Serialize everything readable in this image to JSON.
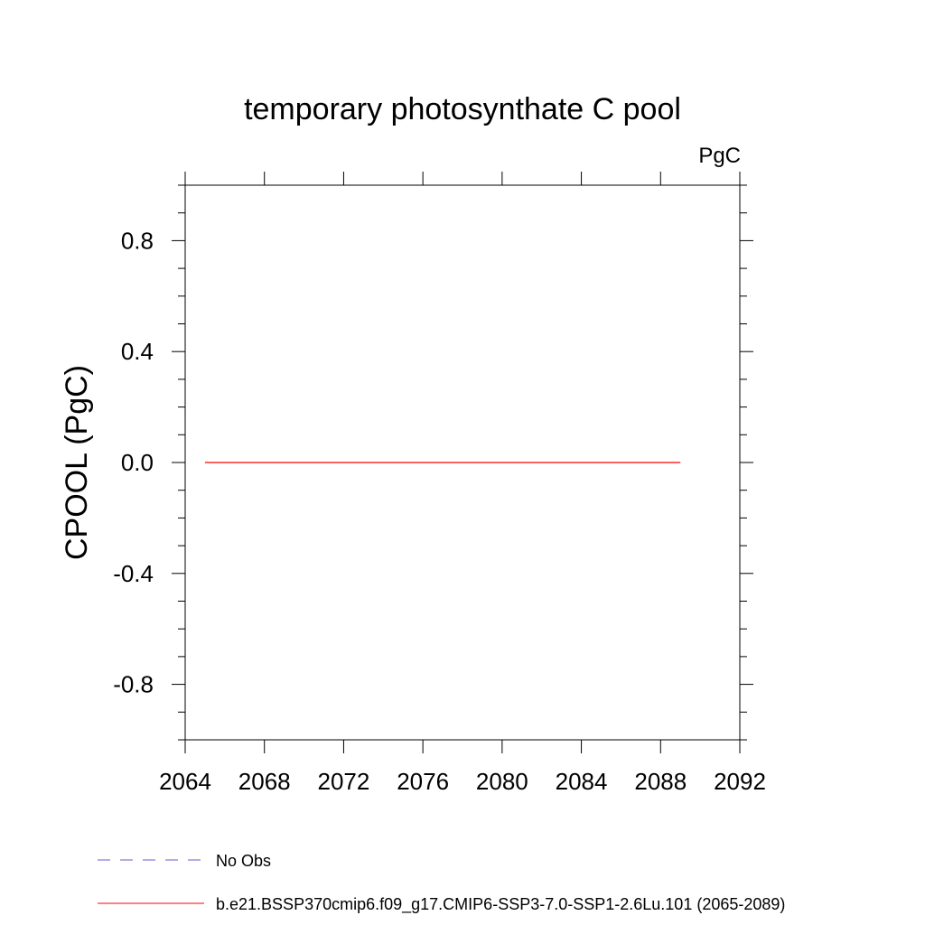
{
  "chart_data": {
    "type": "line",
    "title": "temporary photosynthate C pool",
    "units_label": "PgC",
    "ylabel": "CPOOL  (PgC)",
    "xlabel": "",
    "xlim": [
      2064,
      2092
    ],
    "ylim": [
      -1.0,
      1.0
    ],
    "x_ticks": [
      2064,
      2068,
      2072,
      2076,
      2080,
      2084,
      2088,
      2092
    ],
    "y_ticks": [
      -0.8,
      -0.4,
      0.0,
      0.4,
      0.8
    ],
    "x_tick_labels": [
      "2064",
      "2068",
      "2072",
      "2076",
      "2080",
      "2084",
      "2088",
      "2092"
    ],
    "y_tick_labels": [
      "-0.8",
      "-0.4",
      "0.0",
      "0.4",
      "0.8"
    ],
    "grid": false,
    "legend_position": "bottom",
    "series": [
      {
        "name": "b.e21.BSSP370cmip6.f09_g17.CMIP6-SSP3-7.0-SSP1-2.6Lu.101 (2065-2089)",
        "color": "#ff0000",
        "style": "solid",
        "x": [
          2065,
          2089
        ],
        "values": [
          0.0,
          0.0
        ]
      }
    ],
    "legend": [
      {
        "label": "No Obs",
        "color": "#6a5acd",
        "style": "dashed"
      },
      {
        "label": "b.e21.BSSP370cmip6.f09_g17.CMIP6-SSP3-7.0-SSP1-2.6Lu.101 (2065-2089)",
        "color": "#ff0000",
        "style": "solid"
      }
    ]
  }
}
